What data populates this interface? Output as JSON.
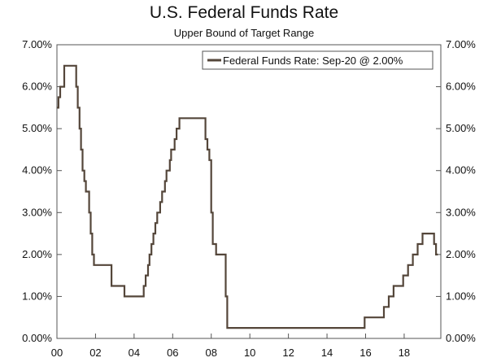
{
  "chart_data": {
    "type": "line",
    "title": "U.S. Federal Funds Rate",
    "subtitle": "Upper Bound of Target Range",
    "xlabel": "",
    "ylabel": "",
    "xlim": [
      2000.0,
      2019.9
    ],
    "ylim": [
      0,
      7
    ],
    "x_ticks": [
      2000,
      2002,
      2004,
      2006,
      2008,
      2010,
      2012,
      2014,
      2016,
      2018
    ],
    "x_tick_labels": [
      "00",
      "02",
      "04",
      "06",
      "08",
      "10",
      "12",
      "14",
      "16",
      "18"
    ],
    "y_ticks": [
      0,
      1,
      2,
      3,
      4,
      5,
      6,
      7
    ],
    "y_tick_labels": [
      "0.00%",
      "1.00%",
      "2.00%",
      "3.00%",
      "4.00%",
      "5.00%",
      "6.00%",
      "7.00%"
    ],
    "grid": false,
    "legend_position": "top-right",
    "series": [
      {
        "name": "Federal Funds Rate: Sep-20 @ 2.00%",
        "color": "#54463a",
        "step": true,
        "x": [
          2000.0,
          2000.08,
          2000.17,
          2000.38,
          2000.9,
          2001.0,
          2001.08,
          2001.17,
          2001.25,
          2001.33,
          2001.42,
          2001.5,
          2001.67,
          2001.75,
          2001.83,
          2001.92,
          2002.83,
          2003.5,
          2004.5,
          2004.6,
          2004.72,
          2004.8,
          2004.9,
          2005.0,
          2005.1,
          2005.2,
          2005.35,
          2005.45,
          2005.6,
          2005.68,
          2005.85,
          2005.92,
          2006.1,
          2006.2,
          2006.35,
          2006.5,
          2007.7,
          2007.8,
          2007.9,
          2008.0,
          2008.08,
          2008.25,
          2008.75,
          2008.83,
          2008.95,
          2015.95,
          2016.95,
          2017.2,
          2017.45,
          2017.95,
          2018.2,
          2018.45,
          2018.7,
          2018.95,
          2019.55,
          2019.65,
          2019.75
        ],
        "y": [
          5.5,
          5.75,
          6.0,
          6.5,
          6.5,
          6.0,
          5.5,
          5.0,
          4.5,
          4.0,
          3.75,
          3.5,
          3.0,
          2.5,
          2.0,
          1.75,
          1.25,
          1.0,
          1.25,
          1.5,
          1.75,
          2.0,
          2.25,
          2.5,
          2.75,
          3.0,
          3.25,
          3.5,
          3.75,
          4.0,
          4.25,
          4.5,
          4.75,
          5.0,
          5.25,
          5.25,
          4.75,
          4.5,
          4.25,
          3.0,
          2.25,
          2.0,
          1.0,
          0.25,
          0.25,
          0.5,
          0.75,
          1.0,
          1.25,
          1.5,
          1.75,
          2.0,
          2.25,
          2.5,
          2.25,
          2.0,
          2.0
        ]
      }
    ]
  }
}
